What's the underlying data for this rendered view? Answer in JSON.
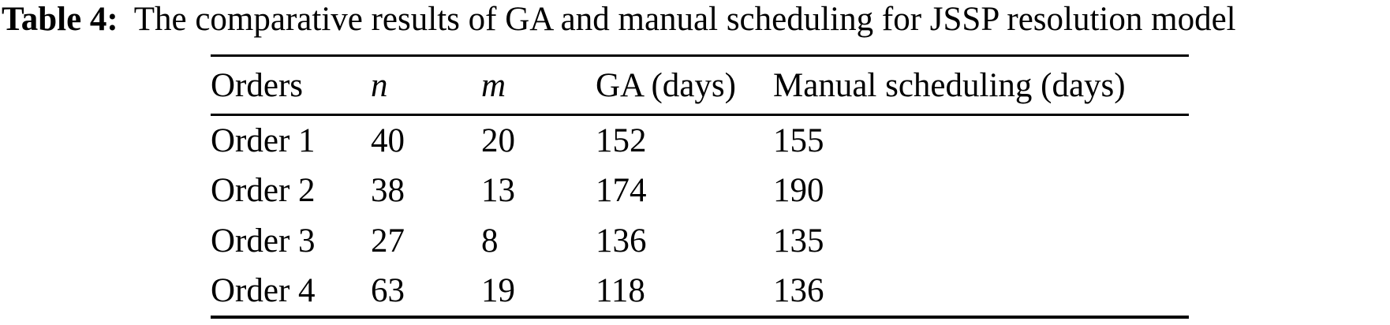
{
  "caption": {
    "label": "Table 4:",
    "text": "The comparative results of GA and manual scheduling for JSSP resolution model"
  },
  "table": {
    "headers": [
      "Orders",
      "n",
      "m",
      "GA (days)",
      "Manual scheduling (days)"
    ],
    "rows": [
      [
        "Order 1",
        "40",
        "20",
        "152",
        "155"
      ],
      [
        "Order 2",
        "38",
        "13",
        "174",
        "190"
      ],
      [
        "Order 3",
        "27",
        "8",
        "136",
        "135"
      ],
      [
        "Order 4",
        "63",
        "19",
        "118",
        "136"
      ]
    ]
  },
  "colors": {
    "text": "#000000",
    "background": "#ffffff",
    "rule": "#000000"
  }
}
